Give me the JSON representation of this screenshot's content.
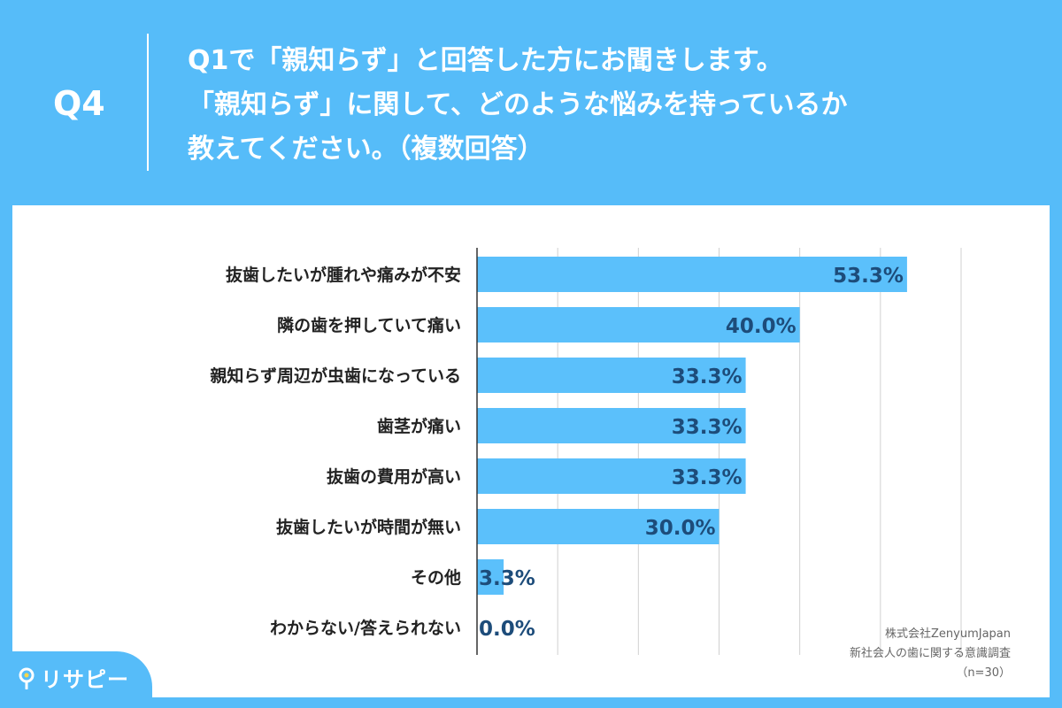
{
  "header": {
    "question_number": "Q4",
    "question_lines": [
      "Q1で「親知らず」と回答した方にお聞きします。",
      "「親知らず」に関して、どのような悩みを持っているか",
      "教えてください。（複数回答）"
    ]
  },
  "chart_data": {
    "type": "bar",
    "orientation": "horizontal",
    "categories": [
      "抜歯したいが腫れや痛みが不安",
      "隣の歯を押していて痛い",
      "親知らず周辺が虫歯になっている",
      "歯茎が痛い",
      "抜歯の費用が高い",
      "抜歯したいが時間が無い",
      "その他",
      "わからない/答えられない"
    ],
    "values": [
      53.3,
      40.0,
      33.3,
      33.3,
      33.3,
      30.0,
      3.3,
      0.0
    ],
    "value_labels": [
      "53.3%",
      "40.0%",
      "33.3%",
      "33.3%",
      "33.3%",
      "30.0%",
      "3.3%",
      "0.0%"
    ],
    "xlim": [
      0,
      60
    ],
    "grid": true,
    "bar_color": "#5bc0fb",
    "label_color": "#1d4c7a"
  },
  "footer": {
    "source_lines": [
      "株式会社ZenyumJapan",
      "新社会人の歯に関する意識調査",
      "（n=30）"
    ]
  },
  "brand": {
    "logo_text": "リサピー",
    "logo_icon": "pin-icon",
    "background_color": "#56bcf9"
  }
}
